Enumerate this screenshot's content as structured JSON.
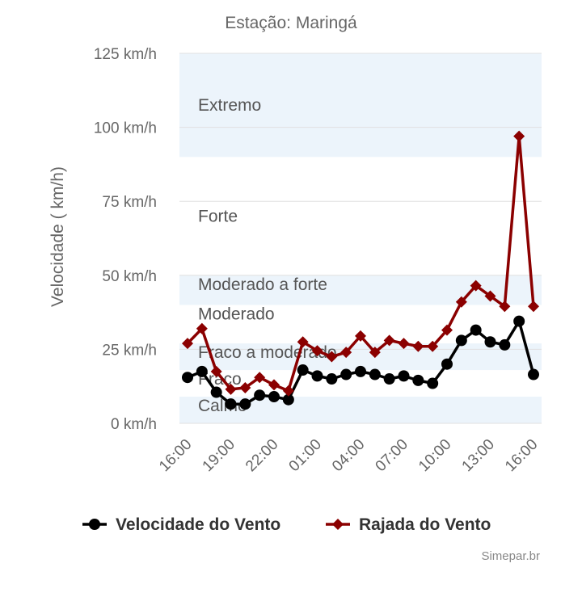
{
  "chart_data": {
    "type": "line",
    "title": "Estação: Maringá",
    "ylabel": "Velocidade ( km/h)",
    "xlabel": "",
    "ylim": [
      0,
      125
    ],
    "y_ticks": [
      0,
      25,
      50,
      75,
      100,
      125
    ],
    "y_tick_labels": [
      "0 km/h",
      "25 km/h",
      "50 km/h",
      "75 km/h",
      "100 km/h",
      "125 km/h"
    ],
    "x": [
      "16:00",
      "17:00",
      "18:00",
      "19:00",
      "20:00",
      "21:00",
      "22:00",
      "23:00",
      "00:00",
      "01:00",
      "02:00",
      "03:00",
      "04:00",
      "05:00",
      "06:00",
      "07:00",
      "08:00",
      "09:00",
      "10:00",
      "11:00",
      "12:00",
      "13:00",
      "14:00",
      "15:00",
      "16:00"
    ],
    "x_tick_labels": [
      "16:00",
      "19:00",
      "22:00",
      "01:00",
      "04:00",
      "07:00",
      "10:00",
      "13:00",
      "16:00"
    ],
    "bands": [
      {
        "label": "Calmo",
        "from": 0,
        "to": 9
      },
      {
        "label": "Fraco",
        "from": 9,
        "to": 18
      },
      {
        "label": "Fraco a moderado",
        "from": 18,
        "to": 27
      },
      {
        "label": "Moderado",
        "from": 27,
        "to": 40
      },
      {
        "label": "Moderado a forte",
        "from": 40,
        "to": 50
      },
      {
        "label": "Forte",
        "from": 50,
        "to": 90
      },
      {
        "label": "Extremo",
        "from": 90,
        "to": 125
      }
    ],
    "series": [
      {
        "name": "Velocidade do Vento",
        "color": "#000000",
        "marker": "circle",
        "values": [
          15.5,
          17.5,
          10.5,
          6.5,
          6.5,
          9.5,
          9,
          8,
          18,
          16,
          15,
          16.5,
          17.5,
          16.5,
          15,
          16,
          14.5,
          13.5,
          20,
          28,
          31.5,
          27.5,
          26.5,
          34.5,
          16.5
        ]
      },
      {
        "name": "Rajada do Vento",
        "color": "#8b0000",
        "marker": "diamond",
        "values": [
          27,
          32,
          17.5,
          11.5,
          12,
          15.5,
          13,
          11,
          27.5,
          24.5,
          22.5,
          24,
          29.5,
          24,
          28,
          27,
          26,
          26,
          31.5,
          41,
          46.5,
          43,
          39.5,
          97,
          39.5
        ]
      }
    ],
    "legend_position": "bottom",
    "credit": "Simepar.br"
  }
}
